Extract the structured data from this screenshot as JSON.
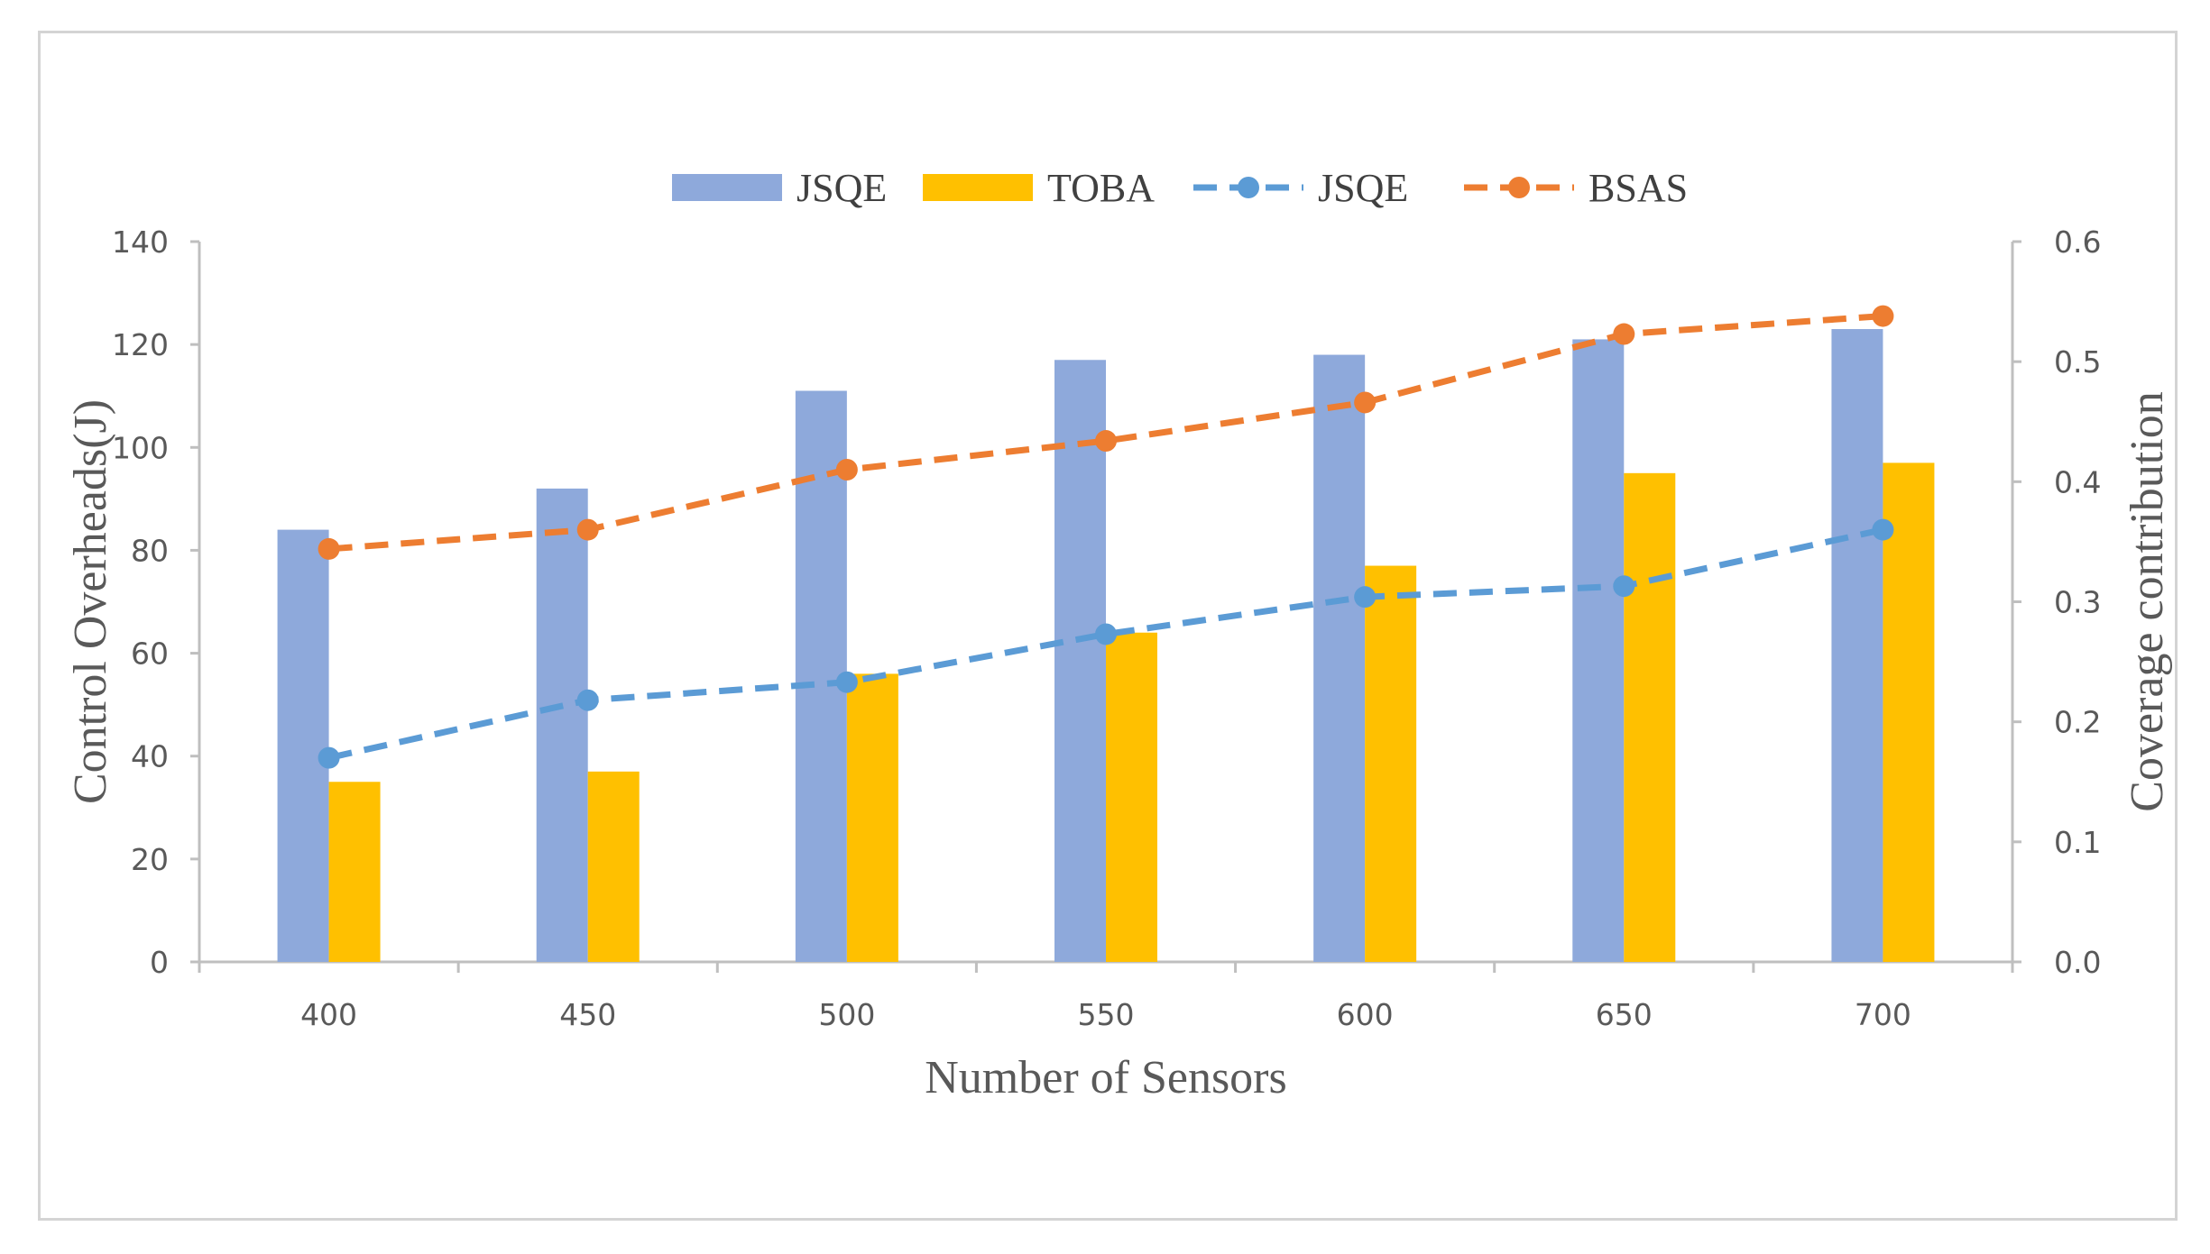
{
  "chart_data": {
    "type": "bar+line",
    "title": "",
    "categories": [
      "400",
      "450",
      "500",
      "550",
      "600",
      "650",
      "700"
    ],
    "bar_series": [
      {
        "name": "JSQE",
        "color": "#8EA9DB",
        "values": [
          84,
          92,
          111,
          117,
          118,
          121,
          123
        ]
      },
      {
        "name": "TOBA",
        "color": "#FFC000",
        "values": [
          35,
          37,
          56,
          64,
          77,
          95,
          97
        ]
      }
    ],
    "line_series": [
      {
        "name": "JSQE",
        "color": "#5B9BD5",
        "style": "dashed",
        "marker": "circle",
        "values": [
          0.17,
          0.218,
          0.233,
          0.273,
          0.304,
          0.313,
          0.36
        ]
      },
      {
        "name": "BSAS",
        "color": "#ED7D31",
        "style": "dashed",
        "marker": "circle",
        "values": [
          0.344,
          0.36,
          0.41,
          0.434,
          0.466,
          0.523,
          0.538
        ]
      }
    ],
    "xlabel": "Number of Sensors",
    "ylabel": "Control  Overheads(J)",
    "y2label": "Coverage contribution",
    "ylim": [
      0,
      140
    ],
    "y_ticks": [
      "0",
      "20",
      "40",
      "60",
      "80",
      "100",
      "120",
      "140"
    ],
    "y2lim": [
      0,
      0.6
    ],
    "y2_ticks": [
      "0.0",
      "0.1",
      "0.2",
      "0.3",
      "0.4",
      "0.5",
      "0.6"
    ],
    "legend_position": "top-center",
    "grid": false
  }
}
